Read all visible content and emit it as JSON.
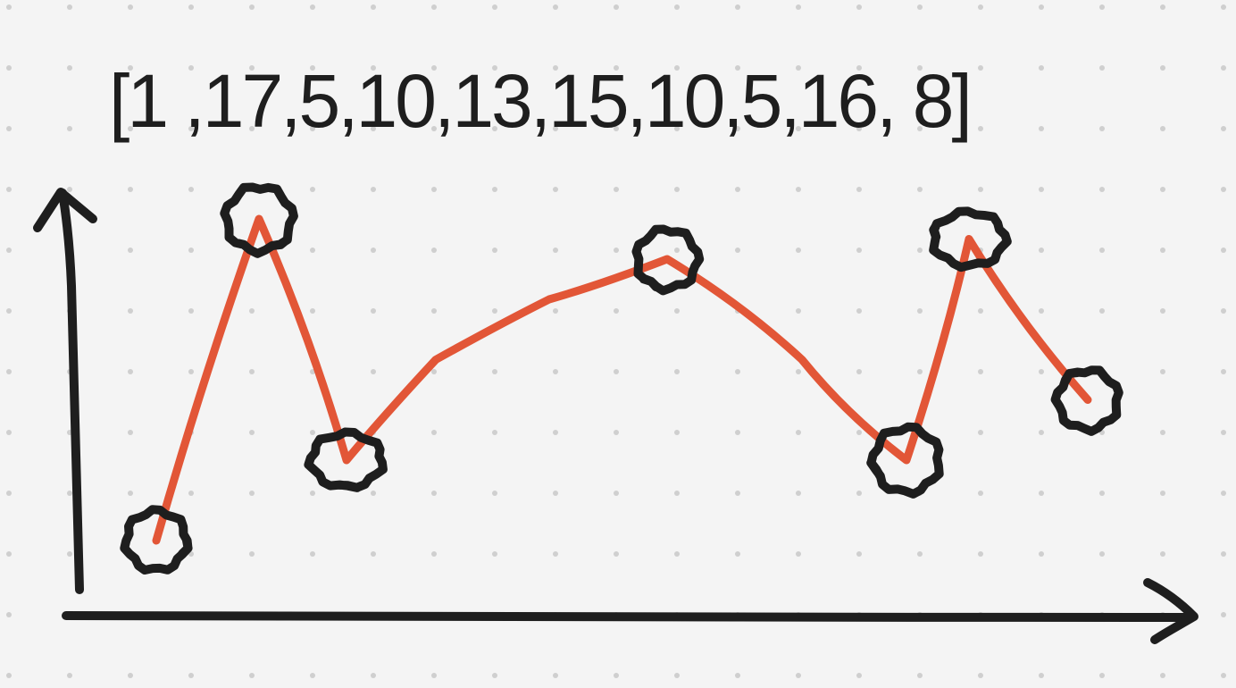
{
  "array_label": "[1 ,17,5,10,13,15,10,5,16, 8]",
  "colors": {
    "background": "#f4f4f4",
    "grid_dot": "#cfcfcf",
    "axis_stroke": "#1e1e1e",
    "line_stroke": "#e25637",
    "marker_stroke": "#1e1e1e"
  },
  "chart_data": {
    "type": "line",
    "values": [
      1,
      17,
      5,
      10,
      13,
      15,
      10,
      5,
      16,
      8
    ],
    "circled_point_indices": [
      0,
      1,
      2,
      5,
      7,
      8,
      9
    ],
    "grid": "dotted"
  }
}
